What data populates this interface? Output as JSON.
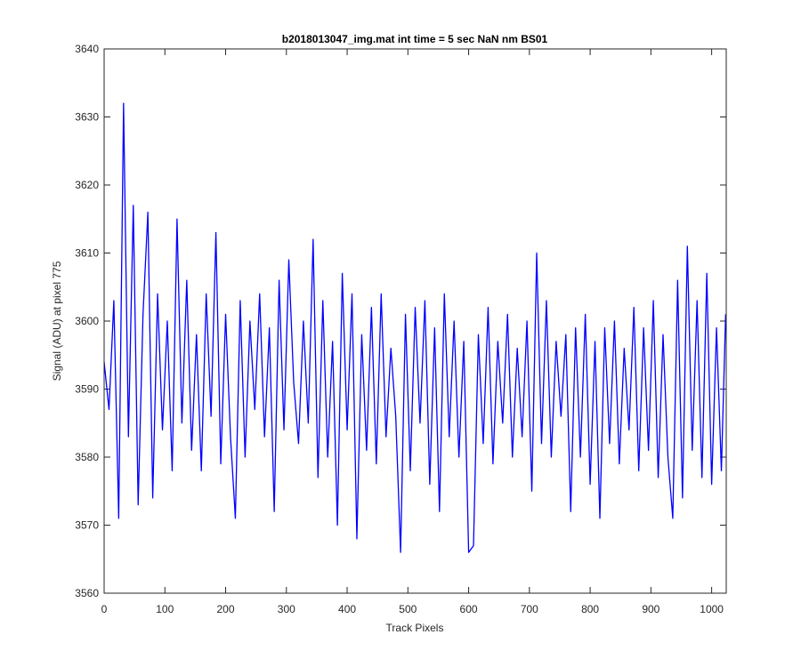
{
  "chart_data": {
    "type": "line",
    "title": "b2018013047_img.mat int time = 5 sec  NaN nm BS01",
    "x_label": "Track Pixels",
    "y_label": "Signal (ADU) at pixel 775",
    "x": [
      0,
      8,
      16,
      24,
      32,
      40,
      48,
      56,
      64,
      72,
      80,
      88,
      96,
      104,
      112,
      120,
      128,
      136,
      144,
      152,
      160,
      168,
      176,
      184,
      192,
      200,
      208,
      216,
      224,
      232,
      240,
      248,
      256,
      264,
      272,
      280,
      288,
      296,
      304,
      312,
      320,
      328,
      336,
      344,
      352,
      360,
      368,
      376,
      384,
      392,
      400,
      408,
      416,
      424,
      432,
      440,
      448,
      456,
      464,
      472,
      480,
      488,
      496,
      504,
      512,
      520,
      528,
      536,
      544,
      552,
      560,
      568,
      576,
      584,
      592,
      600,
      608,
      616,
      624,
      632,
      640,
      648,
      656,
      664,
      672,
      680,
      688,
      696,
      704,
      712,
      720,
      728,
      736,
      744,
      752,
      760,
      768,
      776,
      784,
      792,
      800,
      808,
      816,
      824,
      832,
      840,
      848,
      856,
      864,
      872,
      880,
      888,
      896,
      904,
      912,
      920,
      928,
      936,
      944,
      952,
      960,
      968,
      976,
      984,
      992,
      1000,
      1008,
      1016,
      1023
    ],
    "series": [
      {
        "color": "#0000ff",
        "values": [
          3594,
          3587,
          3603,
          3571,
          3632,
          3583,
          3617,
          3573,
          3601,
          3616,
          3574,
          3604,
          3584,
          3600,
          3578,
          3615,
          3585,
          3606,
          3581,
          3598,
          3578,
          3604,
          3586,
          3613,
          3579,
          3601,
          3583,
          3571,
          3603,
          3580,
          3600,
          3587,
          3604,
          3583,
          3599,
          3572,
          3606,
          3584,
          3609,
          3591,
          3582,
          3600,
          3585,
          3612,
          3577,
          3603,
          3580,
          3597,
          3570,
          3607,
          3584,
          3604,
          3568,
          3598,
          3581,
          3602,
          3579,
          3604,
          3583,
          3596,
          3586,
          3566,
          3601,
          3578,
          3602,
          3585,
          3603,
          3576,
          3599,
          3572,
          3604,
          3583,
          3600,
          3580,
          3597,
          3566,
          3567,
          3598,
          3582,
          3602,
          3579,
          3597,
          3585,
          3601,
          3580,
          3596,
          3583,
          3600,
          3575,
          3610,
          3582,
          3603,
          3580,
          3597,
          3586,
          3598,
          3572,
          3599,
          3580,
          3601,
          3576,
          3597,
          3571,
          3599,
          3582,
          3600,
          3579,
          3596,
          3584,
          3602,
          3578,
          3599,
          3581,
          3603,
          3577,
          3598,
          3580,
          3571,
          3606,
          3574,
          3611,
          3581,
          3603,
          3577,
          3607,
          3576,
          3599,
          3578,
          3601
        ]
      }
    ],
    "xlim": [
      0,
      1024
    ],
    "ylim": [
      3560,
      3640
    ],
    "xticks": [
      0,
      100,
      200,
      300,
      400,
      500,
      600,
      700,
      800,
      900,
      1000
    ],
    "yticks": [
      3560,
      3570,
      3580,
      3590,
      3600,
      3610,
      3620,
      3630,
      3640
    ]
  }
}
